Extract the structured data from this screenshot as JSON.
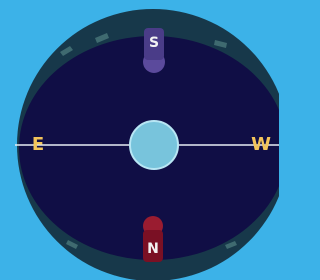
{
  "compass": {
    "labels": {
      "south": "S",
      "north": "N",
      "east": "E",
      "west": "W"
    }
  }
}
